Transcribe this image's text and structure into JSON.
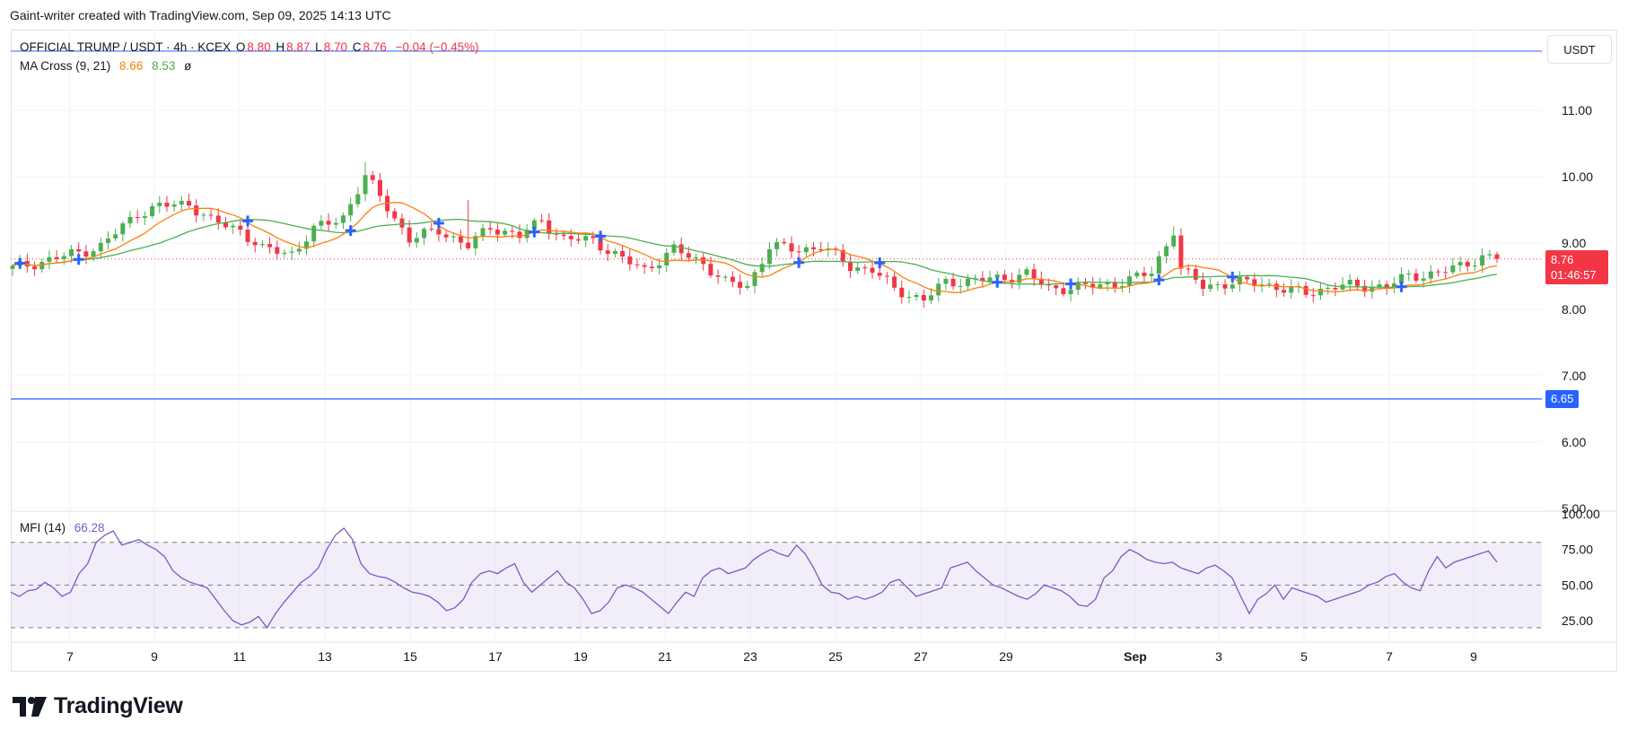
{
  "header": {
    "attribution": "Gaint-writer created with TradingView.com, Sep 09, 2025 14:13 UTC"
  },
  "legend": {
    "symbol": "OFFICIAL TRUMP / USDT · 4h · KCEX",
    "o_label": "O",
    "o_value": "8.80",
    "h_label": "H",
    "h_value": "8.87",
    "l_label": "L",
    "l_value": "8.70",
    "c_label": "C",
    "c_value": "8.76",
    "change": "−0.04 (−0.45%)",
    "ma_label": "MA Cross (9, 21)",
    "ma_fast": "8.66",
    "ma_slow": "8.53",
    "ma_icon": "ø",
    "mfi_label": "MFI (14)",
    "mfi_value": "66.28"
  },
  "currency_button": "USDT",
  "price_tag": {
    "price": "8.76",
    "countdown": "01:46:57"
  },
  "level_tag": {
    "price": "6.65"
  },
  "brand": {
    "name": "TradingView"
  },
  "colors": {
    "up": "#4caf50",
    "down": "#f23645",
    "ma_fast": "#ff7f0e",
    "ma_slow": "#4caf50",
    "level": "#2962ff",
    "mfi": "#7e57c2",
    "cross": "#2962ff"
  },
  "chart_data": [
    {
      "type": "candlestick",
      "title": "OFFICIAL TRUMP / USDT · 4h · KCEX",
      "y_ticks": [
        "5.00",
        "6.00",
        "7.00",
        "8.00",
        "9.00",
        "10.00",
        "11.00"
      ],
      "ylim": [
        5,
        12
      ],
      "x_ticks": [
        "7",
        "9",
        "11",
        "13",
        "15",
        "17",
        "19",
        "21",
        "23",
        "25",
        "27",
        "29",
        "Sep",
        "3",
        "5",
        "7",
        "9"
      ],
      "horizontal_levels": [
        6.65
      ],
      "last_price": 8.76,
      "ohlc_last": {
        "open": 8.8,
        "high": 8.87,
        "low": 8.7,
        "close": 8.76
      },
      "close_path": [
        [
          0,
          8.62
        ],
        [
          7,
          8.8
        ],
        [
          12,
          8.95
        ],
        [
          17,
          9.45
        ],
        [
          20,
          9.55
        ],
        [
          24,
          9.6
        ],
        [
          27,
          9.33
        ],
        [
          31,
          9.2
        ],
        [
          34,
          8.9
        ],
        [
          38,
          8.85
        ],
        [
          41,
          9.2
        ],
        [
          45,
          9.4
        ],
        [
          48,
          10.0
        ],
        [
          51,
          9.55
        ],
        [
          54,
          9.05
        ],
        [
          58,
          9.2
        ],
        [
          62,
          8.95
        ],
        [
          65,
          9.25
        ],
        [
          69,
          9.1
        ],
        [
          72,
          9.35
        ],
        [
          75,
          9.05
        ],
        [
          79,
          9.05
        ],
        [
          83,
          8.75
        ],
        [
          86,
          8.6
        ],
        [
          90,
          8.9
        ],
        [
          94,
          8.7
        ],
        [
          97,
          8.4
        ],
        [
          100,
          8.35
        ],
        [
          103,
          8.95
        ],
        [
          107,
          8.9
        ],
        [
          110,
          8.95
        ],
        [
          114,
          8.65
        ],
        [
          117,
          8.6
        ],
        [
          120,
          8.3
        ],
        [
          124,
          8.15
        ],
        [
          127,
          8.4
        ],
        [
          131,
          8.45
        ],
        [
          134,
          8.45
        ],
        [
          138,
          8.55
        ],
        [
          141,
          8.3
        ],
        [
          145,
          8.35
        ],
        [
          148,
          8.35
        ],
        [
          152,
          8.45
        ],
        [
          155,
          8.55
        ],
        [
          158,
          9.2
        ],
        [
          159,
          8.6
        ],
        [
          162,
          8.35
        ],
        [
          166,
          8.4
        ],
        [
          170,
          8.4
        ],
        [
          173,
          8.3
        ],
        [
          176,
          8.25
        ],
        [
          180,
          8.35
        ],
        [
          183,
          8.35
        ],
        [
          187,
          8.35
        ],
        [
          190,
          8.5
        ],
        [
          194,
          8.55
        ],
        [
          197,
          8.65
        ],
        [
          200,
          8.8
        ],
        [
          202,
          8.76
        ]
      ],
      "ma_fast_end": 8.66,
      "ma_slow_end": 8.53
    },
    {
      "type": "line",
      "title": "MFI (14)",
      "y_ticks": [
        "25.00",
        "50.00",
        "75.00",
        "100.00"
      ],
      "ylim": [
        15,
        100
      ],
      "bands": [
        20,
        50,
        80
      ],
      "last_value": 66.28,
      "values": [
        45,
        42,
        46,
        47,
        52,
        48,
        42,
        45,
        58,
        65,
        80,
        85,
        88,
        78,
        80,
        82,
        78,
        75,
        70,
        60,
        55,
        52,
        50,
        48,
        40,
        32,
        25,
        22,
        24,
        28,
        20,
        30,
        38,
        45,
        52,
        56,
        62,
        75,
        85,
        90,
        82,
        65,
        58,
        56,
        55,
        52,
        48,
        45,
        44,
        42,
        38,
        32,
        34,
        40,
        52,
        58,
        60,
        58,
        62,
        65,
        52,
        45,
        50,
        55,
        60,
        52,
        48,
        40,
        30,
        32,
        38,
        48,
        50,
        48,
        45,
        40,
        35,
        30,
        38,
        45,
        42,
        55,
        60,
        62,
        58,
        60,
        62,
        68,
        72,
        75,
        72,
        70,
        78,
        72,
        62,
        50,
        45,
        44,
        40,
        42,
        40,
        42,
        45,
        52,
        54,
        48,
        42,
        44,
        46,
        48,
        62,
        64,
        66,
        60,
        55,
        50,
        48,
        45,
        42,
        40,
        44,
        50,
        48,
        46,
        42,
        36,
        35,
        40,
        55,
        60,
        70,
        75,
        72,
        68,
        66,
        65,
        66,
        62,
        60,
        58,
        62,
        64,
        60,
        55,
        42,
        30,
        40,
        44,
        50,
        40,
        48,
        46,
        44,
        42,
        38,
        40,
        42,
        44,
        46,
        50,
        52,
        56,
        58,
        52,
        48,
        46,
        60,
        70,
        62,
        66,
        68,
        70,
        72,
        74,
        66
      ]
    }
  ]
}
